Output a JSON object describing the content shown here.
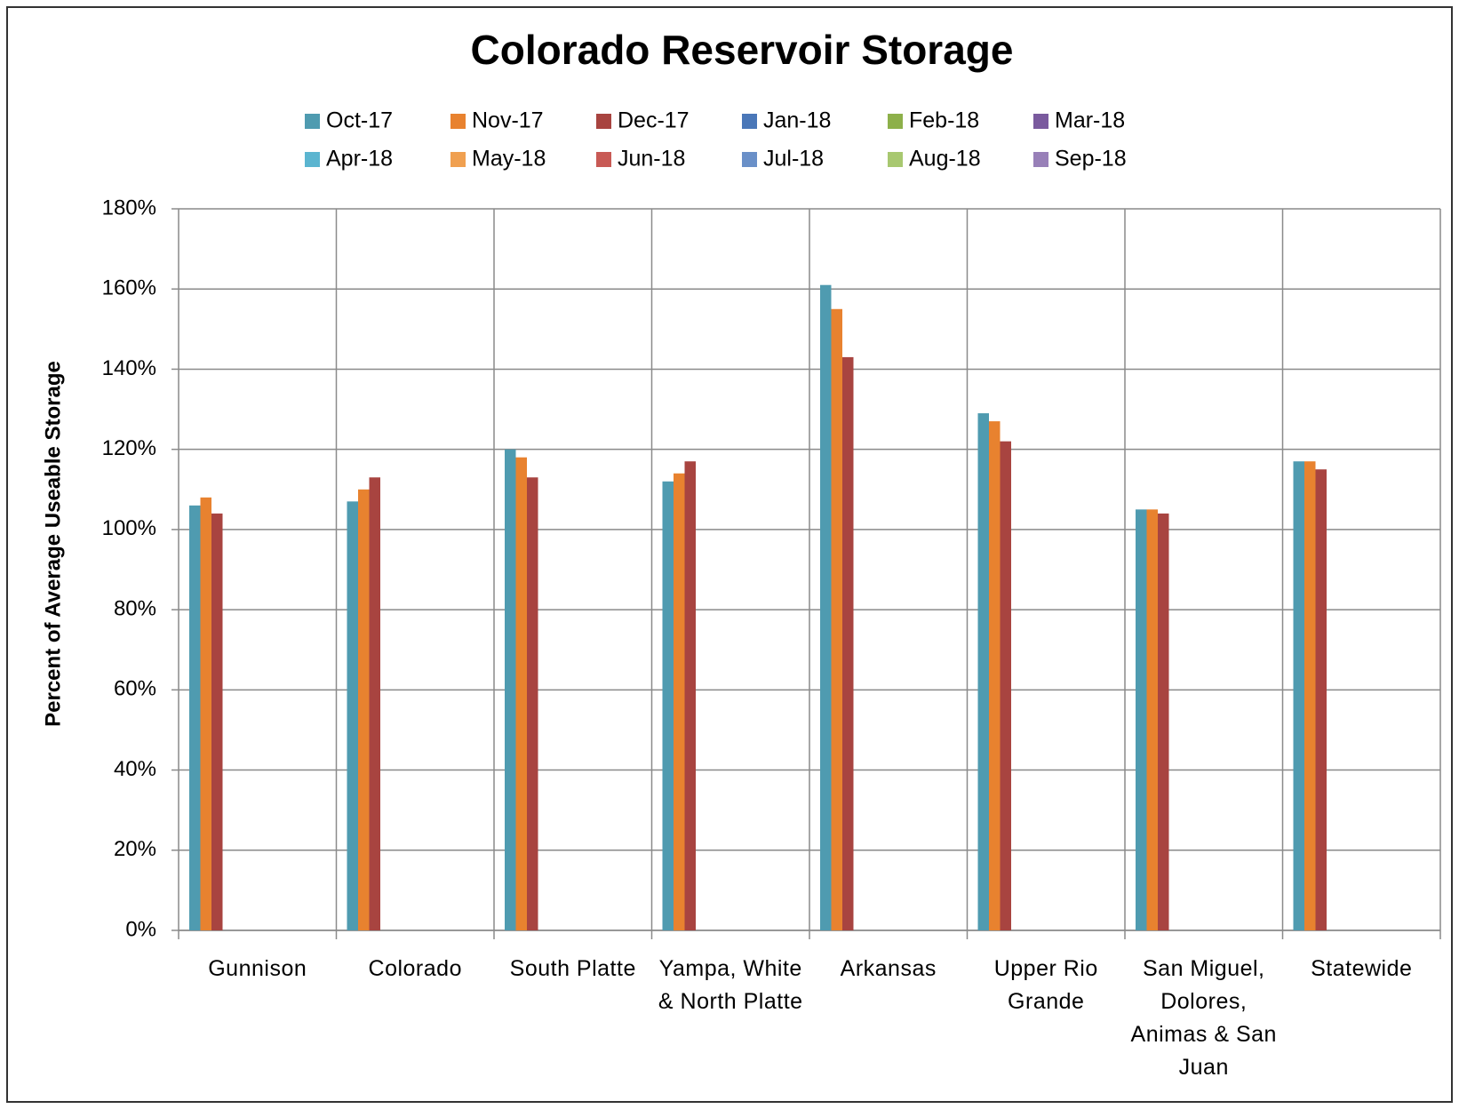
{
  "chart_data": {
    "type": "bar",
    "title": "Colorado Reservoir Storage",
    "y_label": "Percent of Average Useable Storage",
    "categories": [
      "Gunnison",
      "Colorado",
      "South Platte",
      "Yampa, White & North Platte",
      "Arkansas",
      "Upper Rio Grande",
      "San Miguel, Dolores, Animas & San Juan",
      "Statewide"
    ],
    "series": [
      {
        "name": "Oct-17",
        "color": "#4f9bb0",
        "values": [
          106,
          107,
          120,
          112,
          161,
          129,
          105,
          117
        ]
      },
      {
        "name": "Nov-17",
        "color": "#e8822f",
        "values": [
          108,
          110,
          118,
          114,
          155,
          127,
          105,
          117
        ]
      },
      {
        "name": "Dec-17",
        "color": "#a84440",
        "values": [
          104,
          113,
          113,
          117,
          143,
          122,
          104,
          115
        ]
      },
      {
        "name": "Jan-18",
        "color": "#4a77b8",
        "values": [
          null,
          null,
          null,
          null,
          null,
          null,
          null,
          null
        ]
      },
      {
        "name": "Feb-18",
        "color": "#8db04a",
        "values": [
          null,
          null,
          null,
          null,
          null,
          null,
          null,
          null
        ]
      },
      {
        "name": "Mar-18",
        "color": "#7a5a9e",
        "values": [
          null,
          null,
          null,
          null,
          null,
          null,
          null,
          null
        ]
      },
      {
        "name": "Apr-18",
        "color": "#5bb5d0",
        "values": [
          null,
          null,
          null,
          null,
          null,
          null,
          null,
          null
        ]
      },
      {
        "name": "May-18",
        "color": "#f0a050",
        "values": [
          null,
          null,
          null,
          null,
          null,
          null,
          null,
          null
        ]
      },
      {
        "name": "Jun-18",
        "color": "#c85a55",
        "values": [
          null,
          null,
          null,
          null,
          null,
          null,
          null,
          null
        ]
      },
      {
        "name": "Jul-18",
        "color": "#6a90c8",
        "values": [
          null,
          null,
          null,
          null,
          null,
          null,
          null,
          null
        ]
      },
      {
        "name": "Aug-18",
        "color": "#a8c870",
        "values": [
          null,
          null,
          null,
          null,
          null,
          null,
          null,
          null
        ]
      },
      {
        "name": "Sep-18",
        "color": "#9880b8",
        "values": [
          null,
          null,
          null,
          null,
          null,
          null,
          null,
          null
        ]
      }
    ],
    "ylim": [
      0,
      180
    ],
    "yticks": [
      {
        "value": 0,
        "label": "0%"
      },
      {
        "value": 20,
        "label": "20%"
      },
      {
        "value": 40,
        "label": "40%"
      },
      {
        "value": 60,
        "label": "60%"
      },
      {
        "value": 80,
        "label": "80%"
      },
      {
        "value": 100,
        "label": "100%"
      },
      {
        "value": 120,
        "label": "120%"
      },
      {
        "value": 140,
        "label": "140%"
      },
      {
        "value": 160,
        "label": "160%"
      },
      {
        "value": 180,
        "label": "180%"
      }
    ],
    "grid": true,
    "legend": "top"
  }
}
